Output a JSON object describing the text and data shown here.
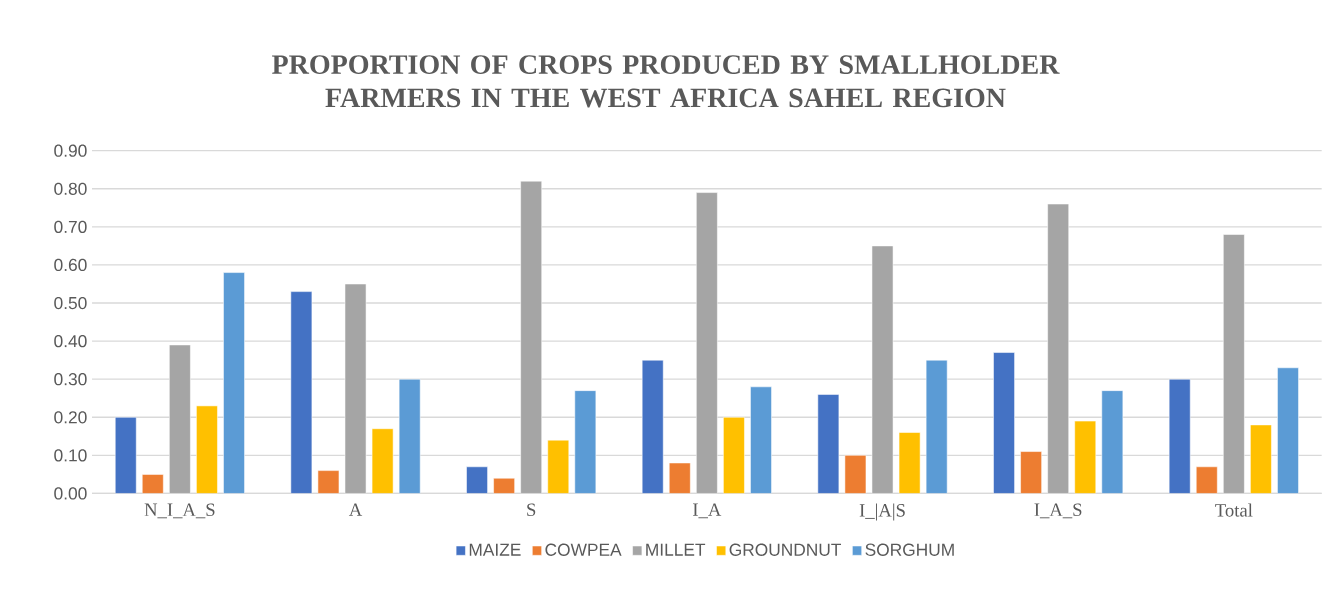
{
  "chart_data": {
    "type": "bar",
    "title": "PROPORTION OF CROPS PRODUCED BY SMALLHOLDER FARMERS IN THE WEST AFRICA SAHEL REGION",
    "categories": [
      "N_I_A_S",
      "A",
      "S",
      "I_A",
      "I_|A|S",
      "I_A_S",
      "Total"
    ],
    "series": [
      {
        "name": "MAIZE",
        "color": "#4472c4",
        "values": [
          0.2,
          0.53,
          0.07,
          0.35,
          0.26,
          0.37,
          0.3
        ]
      },
      {
        "name": "COWPEA",
        "color": "#ed7d31",
        "values": [
          0.05,
          0.06,
          0.04,
          0.08,
          0.1,
          0.11,
          0.07
        ]
      },
      {
        "name": "MILLET",
        "color": "#a5a5a5",
        "values": [
          0.39,
          0.55,
          0.82,
          0.79,
          0.65,
          0.76,
          0.68
        ]
      },
      {
        "name": "GROUNDNUT",
        "color": "#ffc000",
        "values": [
          0.23,
          0.17,
          0.14,
          0.2,
          0.16,
          0.19,
          0.18
        ]
      },
      {
        "name": "SORGHUM",
        "color": "#5b9bd5",
        "values": [
          0.58,
          0.3,
          0.27,
          0.28,
          0.35,
          0.27,
          0.33
        ]
      }
    ],
    "ylim": [
      0,
      0.9
    ],
    "yticks": [
      {
        "value": 0,
        "label": "0.00"
      },
      {
        "value": 0.1,
        "label": "0.10"
      },
      {
        "value": 0.2,
        "label": "0.20"
      },
      {
        "value": 0.3,
        "label": "0.30"
      },
      {
        "value": 0.4,
        "label": "0.40"
      },
      {
        "value": 0.5,
        "label": "0.50"
      },
      {
        "value": 0.6,
        "label": "0.60"
      },
      {
        "value": 0.7,
        "label": "0.70"
      },
      {
        "value": 0.8,
        "label": "0.80"
      },
      {
        "value": 0.9,
        "label": "0.90"
      }
    ],
    "grid": "y",
    "legend": "bottom"
  }
}
